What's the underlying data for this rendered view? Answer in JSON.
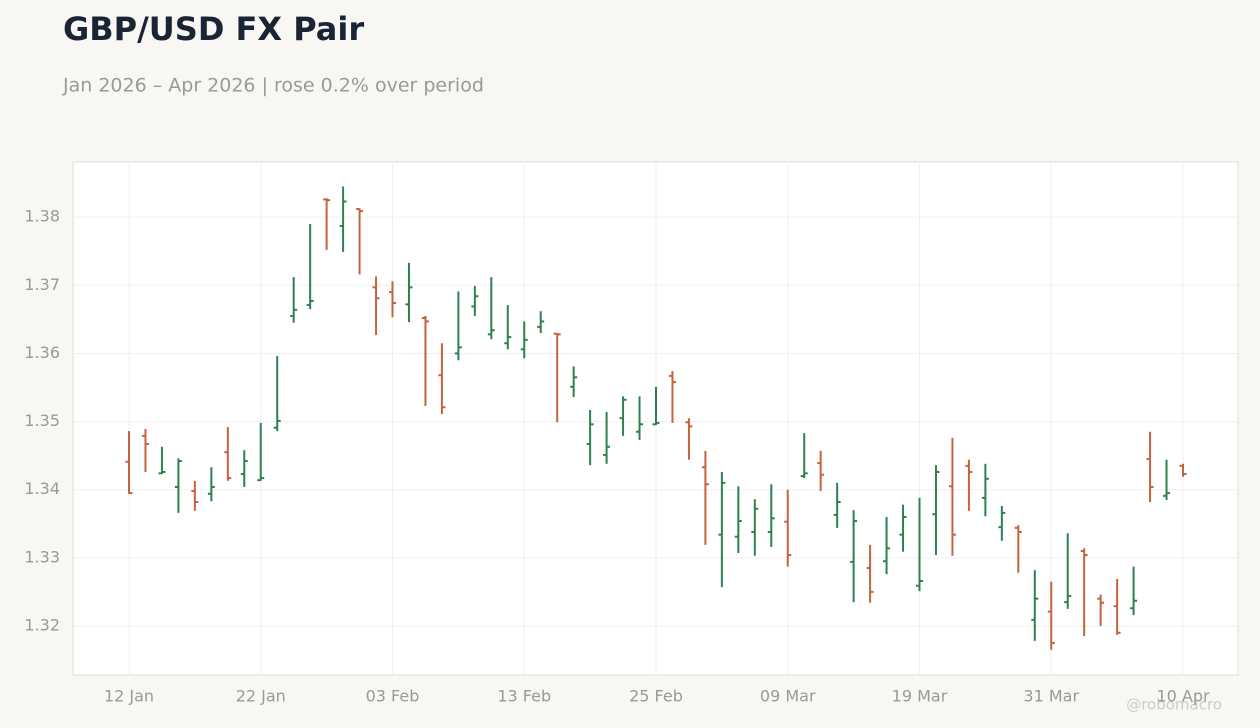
{
  "chart_data": {
    "type": "ohlc",
    "title": "GBP/USD FX Pair",
    "subtitle": "Jan 2026 – Apr 2026 | rose 0.2% over period",
    "watermark": "@robomacro",
    "categories": [
      "12 Jan",
      null,
      null,
      null,
      null,
      null,
      null,
      null,
      "22 Jan",
      null,
      null,
      null,
      null,
      null,
      null,
      null,
      "03 Feb",
      null,
      null,
      null,
      null,
      null,
      null,
      null,
      "13 Feb",
      null,
      null,
      null,
      null,
      null,
      null,
      null,
      "25 Feb",
      null,
      null,
      null,
      null,
      null,
      null,
      null,
      "09 Mar",
      null,
      null,
      null,
      null,
      null,
      null,
      null,
      "19 Mar",
      null,
      null,
      null,
      null,
      null,
      null,
      null,
      "31 Mar",
      null,
      null,
      null,
      null,
      null,
      null,
      null,
      "10 Apr"
    ],
    "open": [
      1.3441,
      1.3479,
      1.3424,
      1.3404,
      1.3398,
      1.3394,
      1.3455,
      1.3423,
      1.3414,
      1.3491,
      1.3655,
      1.3671,
      1.3826,
      1.3787,
      1.3812,
      1.3697,
      1.369,
      1.3672,
      1.3652,
      1.3568,
      1.36,
      1.3669,
      1.3628,
      1.3615,
      1.3606,
      1.3639,
      1.3629,
      1.3551,
      1.3467,
      1.3451,
      1.3505,
      1.3485,
      1.3496,
      1.3567,
      1.3499,
      1.3433,
      1.3334,
      1.3331,
      1.3338,
      1.3338,
      1.3353,
      1.342,
      1.3439,
      1.3363,
      1.3294,
      1.3285,
      1.3295,
      1.3334,
      1.3259,
      1.3364,
      1.3405,
      1.3435,
      1.3388,
      1.3345,
      1.3344,
      1.3209,
      1.3221,
      1.3235,
      1.331,
      1.324,
      1.3229,
      1.3226,
      1.3445,
      1.3391,
      1.3435
    ],
    "high": [
      1.3486,
      1.3489,
      1.3463,
      1.3446,
      1.3413,
      1.3433,
      1.3492,
      1.3458,
      1.3498,
      1.3596,
      1.3712,
      1.379,
      1.3828,
      1.3845,
      1.3813,
      1.3713,
      1.3706,
      1.3733,
      1.3655,
      1.3615,
      1.3691,
      1.3699,
      1.3712,
      1.3671,
      1.3647,
      1.3662,
      1.363,
      1.3581,
      1.3517,
      1.3514,
      1.3537,
      1.3537,
      1.3551,
      1.3574,
      1.3505,
      1.3457,
      1.3426,
      1.3405,
      1.3386,
      1.3408,
      1.34,
      1.3483,
      1.3457,
      1.341,
      1.337,
      1.3319,
      1.336,
      1.3378,
      1.3388,
      1.3436,
      1.3476,
      1.3444,
      1.3438,
      1.3376,
      1.3348,
      1.3282,
      1.3265,
      1.3336,
      1.3314,
      1.3246,
      1.3269,
      1.3287,
      1.3485,
      1.3444,
      1.3438
    ],
    "low": [
      1.3394,
      1.3426,
      1.3423,
      1.3366,
      1.3369,
      1.3383,
      1.3413,
      1.3404,
      1.3413,
      1.3486,
      1.3645,
      1.3665,
      1.3752,
      1.3749,
      1.3716,
      1.3627,
      1.3653,
      1.3646,
      1.3523,
      1.3511,
      1.359,
      1.3655,
      1.3621,
      1.3606,
      1.3593,
      1.363,
      1.3499,
      1.3536,
      1.3436,
      1.3438,
      1.3479,
      1.3473,
      1.3495,
      1.3498,
      1.3444,
      1.3319,
      1.3257,
      1.3307,
      1.3303,
      1.3316,
      1.3287,
      1.3417,
      1.3398,
      1.3344,
      1.3235,
      1.3234,
      1.3276,
      1.3309,
      1.3251,
      1.3304,
      1.3303,
      1.3369,
      1.3361,
      1.3325,
      1.3278,
      1.3178,
      1.3165,
      1.3225,
      1.3185,
      1.32,
      1.3187,
      1.3216,
      1.3382,
      1.3385,
      1.3419
    ],
    "close": [
      1.3395,
      1.3467,
      1.3426,
      1.3442,
      1.3382,
      1.3404,
      1.3417,
      1.3442,
      1.3417,
      1.3501,
      1.3664,
      1.3677,
      1.3825,
      1.3823,
      1.3809,
      1.3681,
      1.3674,
      1.3697,
      1.3647,
      1.3521,
      1.3609,
      1.3684,
      1.3634,
      1.3624,
      1.362,
      1.3647,
      1.3628,
      1.3565,
      1.3496,
      1.3463,
      1.3532,
      1.3496,
      1.3498,
      1.3558,
      1.3493,
      1.3408,
      1.341,
      1.3354,
      1.3372,
      1.3358,
      1.3304,
      1.3424,
      1.3422,
      1.3382,
      1.3354,
      1.325,
      1.3314,
      1.336,
      1.3266,
      1.3426,
      1.3334,
      1.3426,
      1.3416,
      1.3366,
      1.3338,
      1.324,
      1.3175,
      1.3244,
      1.3304,
      1.3234,
      1.319,
      1.3237,
      1.3404,
      1.3395,
      1.3423
    ],
    "up_color": "#2e8050",
    "down_color": "#c5633f",
    "ylim": [
      1.3128,
      1.3881
    ],
    "yticks": [
      1.32,
      1.33,
      1.34,
      1.35,
      1.36,
      1.37,
      1.38
    ],
    "grid": true
  }
}
